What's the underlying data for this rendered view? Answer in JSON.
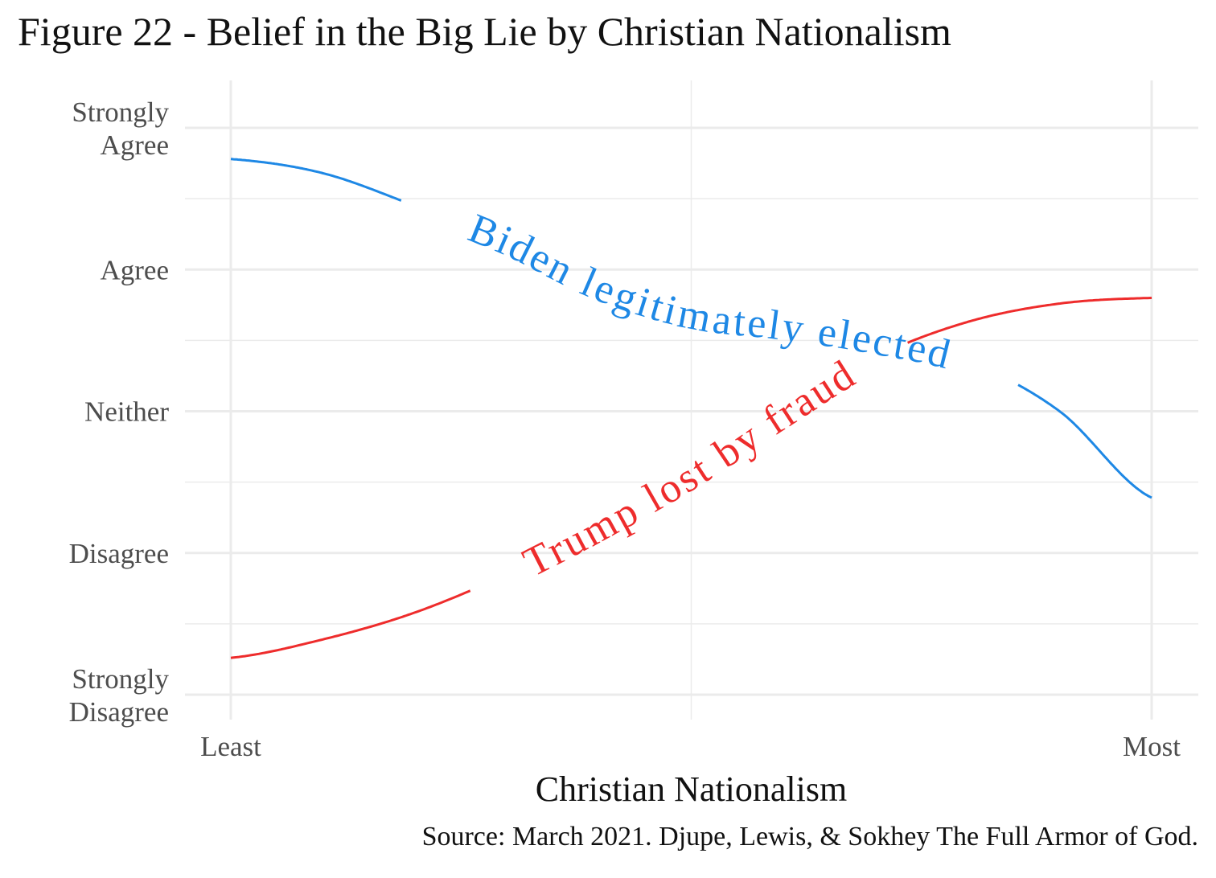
{
  "chart_data": {
    "type": "line",
    "title": "Figure 22 - Belief in the Big Lie by Christian Nationalism",
    "caption": "Source: March 2021. Djupe, Lewis, & Sokhey The Full Armor of God.",
    "xlabel": "Christian Nationalism",
    "ylabel": "",
    "xlim": [
      0,
      1
    ],
    "ylim": [
      1,
      5
    ],
    "x_ticks": [
      {
        "value": 0,
        "label": "Least"
      },
      {
        "value": 1,
        "label": "Most"
      }
    ],
    "y_ticks": [
      {
        "value": 5,
        "label": "Strongly\nAgree"
      },
      {
        "value": 4,
        "label": "Agree"
      },
      {
        "value": 3,
        "label": "Neither"
      },
      {
        "value": 2,
        "label": "Disagree"
      },
      {
        "value": 1,
        "label": "Strongly\nDisagree"
      }
    ],
    "grid": true,
    "x": [
      0,
      0.1,
      0.2,
      0.3,
      0.4,
      0.5,
      0.6,
      0.7,
      0.8,
      0.9,
      1.0
    ],
    "series": [
      {
        "name": "Biden legitimately elected",
        "color": "#1E88E5",
        "values": [
          4.78,
          4.68,
          4.45,
          4.2,
          3.88,
          3.68,
          3.6,
          3.5,
          3.35,
          3.0,
          2.39
        ],
        "label_span": [
          0.185,
          0.855
        ]
      },
      {
        "name": "Trump lost by fraud",
        "color": "#EE2C2C",
        "values": [
          1.26,
          1.39,
          1.58,
          1.85,
          2.18,
          2.55,
          2.98,
          3.38,
          3.63,
          3.76,
          3.8
        ],
        "label_span": [
          0.26,
          0.735
        ]
      }
    ]
  }
}
